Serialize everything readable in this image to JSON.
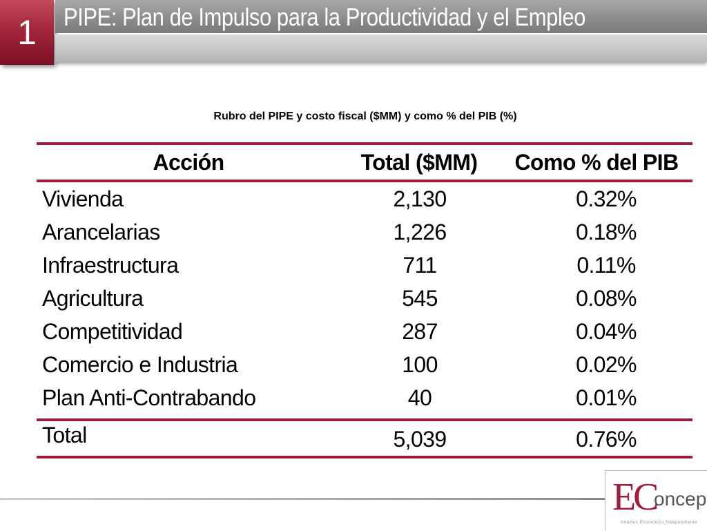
{
  "header": {
    "slide_number": "1",
    "title": "PIPE: Plan de Impulso para la Productividad y el Empleo"
  },
  "caption": "Rubro del PIPE y costo fiscal ($MM) y como % del PIB (%)",
  "table": {
    "columns": [
      "Acción",
      "Total ($MM)",
      "Como % del PIB"
    ],
    "rows": [
      {
        "name": "Vivienda",
        "total": "2,130",
        "pct": "0.32%"
      },
      {
        "name": "Arancelarias",
        "total": "1,226",
        "pct": "0.18%"
      },
      {
        "name": "Infraestructura",
        "total": "711",
        "pct": "0.11%"
      },
      {
        "name": "Agricultura",
        "total": "545",
        "pct": "0.08%"
      },
      {
        "name": "Competitividad",
        "total": "287",
        "pct": "0.04%"
      },
      {
        "name": "Comercio e Industria",
        "total": "100",
        "pct": "0.02%"
      },
      {
        "name": "Plan Anti-Contrabando",
        "total": "40",
        "pct": "0.01%"
      }
    ],
    "total_row": {
      "name": "Total",
      "total": "5,039",
      "pct": "0.76%"
    }
  },
  "logo": {
    "letter_e": "E",
    "letter_c": "C",
    "rest": "oncept",
    "tagline": "Análisis Económico Independiente"
  },
  "colors": {
    "accent": "#a01c3a",
    "title_bar": "#8f8f8f",
    "subtitle_bar": "#c6c6c6"
  }
}
